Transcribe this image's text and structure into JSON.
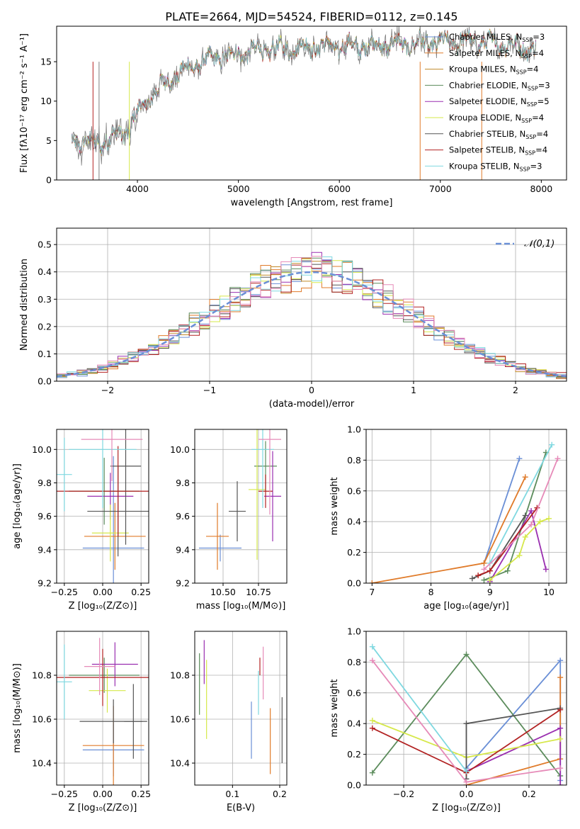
{
  "figure": {
    "title": "PLATE=2664, MJD=54524, FIBERID=0112, z=0.145"
  },
  "models": [
    {
      "key": "m1",
      "label": "Chabrier MILES, N",
      "sub": "SSP",
      "suffix": "=3",
      "color": "#6a8fd6"
    },
    {
      "key": "m2",
      "label": "Salpeter MILES, N",
      "sub": "SSP",
      "suffix": "=4",
      "color": "#e07b2a"
    },
    {
      "key": "m3",
      "label": "Kroupa MILES, N",
      "sub": "SSP",
      "suffix": "=4",
      "color": "#c08a2a"
    },
    {
      "key": "m4",
      "label": "Chabrier ELODIE, N",
      "sub": "SSP",
      "suffix": "=3",
      "color": "#5c8c5c"
    },
    {
      "key": "m5",
      "label": "Salpeter ELODIE, N",
      "sub": "SSP",
      "suffix": "=5",
      "color": "#9a2fb0"
    },
    {
      "key": "m6",
      "label": "Kroupa ELODIE, N",
      "sub": "SSP",
      "suffix": "=4",
      "color": "#d6e84a"
    },
    {
      "key": "m7",
      "label": "Chabrier STELIB, N",
      "sub": "SSP",
      "suffix": "=4",
      "color": "#555555"
    },
    {
      "key": "m8",
      "label": "Salpeter STELIB, N",
      "sub": "SSP",
      "suffix": "=4",
      "color": "#b22222"
    },
    {
      "key": "m9",
      "label": "Kroupa STELIB, N",
      "sub": "SSP",
      "suffix": "=3",
      "color": "#7fd8e0"
    },
    {
      "key": "m10",
      "label": "",
      "sub": "",
      "suffix": "",
      "color": "#e68ab8"
    }
  ],
  "chart_data": [
    {
      "id": "spectrum",
      "type": "line",
      "xlabel": "wavelength [Angstrom, rest frame]",
      "ylabel": "Flux [fλ10⁻¹⁷ erg cm⁻² s⁻¹ A⁻¹]",
      "xlim": [
        3200,
        8250
      ],
      "ylim": [
        0,
        19.5
      ],
      "xticks": [
        4000,
        5000,
        6000,
        7000,
        8000
      ],
      "yticks": [
        0,
        5,
        10,
        15
      ],
      "legend": "right",
      "continuum": {
        "x": [
          3350,
          3600,
          3900,
          4000,
          4200,
          4400,
          4600,
          4800,
          5000,
          5200,
          5400,
          5600,
          5800,
          6000,
          6200,
          6500,
          6800,
          7000,
          7300,
          7600,
          7900
        ],
        "y": [
          5.1,
          4.6,
          6.2,
          8.5,
          11.5,
          13.4,
          14.8,
          15.6,
          16.0,
          16.5,
          16.6,
          16.8,
          17.0,
          16.9,
          17.0,
          17.2,
          17.3,
          17.4,
          17.6,
          17.3,
          16.6
        ]
      },
      "data_range": [
        3350,
        7950
      ]
    },
    {
      "id": "residuals",
      "type": "bar",
      "xlabel": "(data-model)/error",
      "ylabel": "Normed distribution",
      "xlim": [
        -2.5,
        2.5
      ],
      "ylim": [
        0,
        0.56
      ],
      "xticks": [
        -2,
        -1,
        0,
        1,
        2
      ],
      "yticks": [
        0.0,
        0.1,
        0.2,
        0.3,
        0.4,
        0.5
      ],
      "legend": "top-right",
      "reference_label": "𝒩(0,1)",
      "reference": {
        "mean": 0,
        "sigma": 1
      },
      "bin_width": 0.1
    },
    {
      "id": "age_vs_Z",
      "type": "scatter",
      "xlabel": "Z [log₁₀(Z/Z⊙)]",
      "ylabel": "age  [log₁₀(age/yr)]",
      "xlim": [
        -0.3,
        0.3
      ],
      "ylim": [
        9.2,
        10.12
      ],
      "xticks": [
        -0.25,
        0.0,
        0.25
      ],
      "yticks": [
        9.2,
        9.4,
        9.6,
        9.8,
        10.0
      ],
      "points": [
        {
          "model": "m1",
          "x": 0.07,
          "xerr": 0.2,
          "y": 9.41,
          "yerr": 0.55
        },
        {
          "model": "m2",
          "x": 0.08,
          "xerr": 0.2,
          "y": 9.48,
          "yerr": 0.2
        },
        {
          "model": "m4",
          "x": 0.01,
          "xerr": 0.23,
          "y": 9.75,
          "yerr": 0.2
        },
        {
          "model": "m5",
          "x": 0.05,
          "xerr": 0.15,
          "y": 9.72,
          "yerr": 0.14
        },
        {
          "model": "m6",
          "x": 0.05,
          "xerr": 0.12,
          "y": 9.5,
          "yerr": 0.17
        },
        {
          "model": "m7",
          "x": 0.1,
          "xerr": 0.2,
          "y": 9.63,
          "yerr": 0.27
        },
        {
          "model": "m7",
          "x": 0.15,
          "xerr": 0.1,
          "y": 9.9,
          "yerr": 0.47
        },
        {
          "model": "m8",
          "x": 0.1,
          "xerr": 0.42,
          "y": 9.75,
          "yerr": 0.27
        },
        {
          "model": "m9",
          "x": 0.0,
          "xerr": 0.22,
          "y": 10.0,
          "yerr": 0.35
        },
        {
          "model": "m9",
          "x": -0.25,
          "xerr": 0.05,
          "y": 9.85,
          "yerr": 0.22
        },
        {
          "model": "m10",
          "x": 0.06,
          "xerr": 0.2,
          "y": 10.06,
          "yerr": 0.25
        }
      ]
    },
    {
      "id": "age_vs_mass",
      "type": "scatter",
      "xlabel": "mass [log₁₀(M/M⊙)]",
      "ylabel": "",
      "xlim": [
        10.3,
        10.95
      ],
      "ylim": [
        9.2,
        10.12
      ],
      "xticks": [
        10.5,
        10.75
      ],
      "yticks": [
        9.2,
        9.4,
        9.6,
        9.8,
        10.0
      ],
      "points": [
        {
          "model": "m1",
          "x": 10.48,
          "xerr": 0.15,
          "y": 9.41,
          "yerr": 0.08
        },
        {
          "model": "m2",
          "x": 10.46,
          "xerr": 0.08,
          "y": 9.48,
          "yerr": 0.2
        },
        {
          "model": "m4",
          "x": 10.8,
          "xerr": 0.08,
          "y": 9.9,
          "yerr": 0.15
        },
        {
          "model": "m5",
          "x": 10.85,
          "xerr": 0.06,
          "y": 9.72,
          "yerr": 0.27
        },
        {
          "model": "m6",
          "x": 10.74,
          "xerr": 0.06,
          "y": 9.76,
          "yerr": 0.42
        },
        {
          "model": "m7",
          "x": 10.6,
          "xerr": 0.06,
          "y": 9.63,
          "yerr": 0.18
        },
        {
          "model": "m8",
          "x": 10.8,
          "xerr": 0.05,
          "y": 9.75,
          "yerr": 0.1
        },
        {
          "model": "m9",
          "x": 10.78,
          "xerr": 0.08,
          "y": 10.0,
          "yerr": 0.35
        },
        {
          "model": "m10",
          "x": 10.83,
          "xerr": 0.08,
          "y": 10.06,
          "yerr": 0.45
        }
      ]
    },
    {
      "id": "weight_vs_age",
      "type": "line",
      "xlabel": "age  [log₁₀(age/yr)]",
      "ylabel": "mass weight",
      "xlim": [
        6.9,
        10.3
      ],
      "ylim": [
        0,
        1.0
      ],
      "xticks": [
        7,
        8,
        9,
        10
      ],
      "yticks": [
        0.0,
        0.2,
        0.4,
        0.6,
        0.8,
        1.0
      ],
      "series": [
        {
          "model": "m1",
          "x": [
            8.9,
            9.5
          ],
          "y": [
            0.13,
            0.81
          ]
        },
        {
          "model": "m2",
          "x": [
            7.0,
            8.9,
            9.6
          ],
          "y": [
            0.0,
            0.13,
            0.69
          ]
        },
        {
          "model": "m4",
          "x": [
            8.9,
            9.3,
            9.95
          ],
          "y": [
            0.02,
            0.08,
            0.85
          ]
        },
        {
          "model": "m5",
          "x": [
            9.0,
            9.7,
            9.95
          ],
          "y": [
            0.01,
            0.47,
            0.09
          ]
        },
        {
          "model": "m6",
          "x": [
            9.0,
            9.5,
            9.6,
            9.85,
            10.0
          ],
          "y": [
            0.02,
            0.18,
            0.3,
            0.4,
            0.42
          ]
        },
        {
          "model": "m7",
          "x": [
            8.7,
            9.0,
            9.6
          ],
          "y": [
            0.03,
            0.08,
            0.44
          ]
        },
        {
          "model": "m8",
          "x": [
            8.8,
            9.0,
            9.8
          ],
          "y": [
            0.05,
            0.08,
            0.49
          ]
        },
        {
          "model": "m9",
          "x": [
            9.0,
            10.05
          ],
          "y": [
            0.13,
            0.9
          ]
        },
        {
          "model": "m10",
          "x": [
            8.9,
            9.7,
            10.15
          ],
          "y": [
            0.09,
            0.38,
            0.81
          ]
        }
      ]
    },
    {
      "id": "mass_vs_Z",
      "type": "scatter",
      "xlabel": "Z [log₁₀(Z/Z⊙)]",
      "ylabel": "mass [log₁₀(M/M⊙)]",
      "xlim": [
        -0.3,
        0.3
      ],
      "ylim": [
        10.3,
        11.0
      ],
      "xticks": [
        -0.25,
        0.0,
        0.25
      ],
      "yticks": [
        10.4,
        10.6,
        10.8
      ],
      "points": [
        {
          "model": "m1",
          "x": 0.07,
          "xerr": 0.2,
          "y": 10.46,
          "yerr": 0.12
        },
        {
          "model": "m2",
          "x": 0.07,
          "xerr": 0.2,
          "y": 10.48,
          "yerr": 0.18
        },
        {
          "model": "m4",
          "x": 0.01,
          "xerr": 0.23,
          "y": 10.8,
          "yerr": 0.08
        },
        {
          "model": "m5",
          "x": 0.08,
          "xerr": 0.15,
          "y": 10.85,
          "yerr": 0.1
        },
        {
          "model": "m6",
          "x": 0.03,
          "xerr": 0.12,
          "y": 10.73,
          "yerr": 0.1
        },
        {
          "model": "m7",
          "x": 0.07,
          "xerr": 0.22,
          "y": 10.59,
          "yerr": 0.1
        },
        {
          "model": "m7",
          "x": 0.2,
          "xerr": 0.06,
          "y": 10.59,
          "yerr": 0.17
        },
        {
          "model": "m8",
          "x": 0.0,
          "xerr": 0.3,
          "y": 10.79,
          "yerr": 0.13
        },
        {
          "model": "m9",
          "x": -0.25,
          "xerr": 0.05,
          "y": 10.77,
          "yerr": 0.17
        },
        {
          "model": "m10",
          "x": -0.02,
          "xerr": 0.1,
          "y": 10.84,
          "yerr": 0.13
        }
      ]
    },
    {
      "id": "mass_vs_EBV",
      "type": "scatter",
      "xlabel": "E(B-V)",
      "ylabel": "",
      "xlim": [
        0.02,
        0.215
      ],
      "ylim": [
        10.3,
        11.0
      ],
      "xticks": [
        0.1,
        0.2
      ],
      "yticks": [
        10.4,
        10.6,
        10.8
      ],
      "points": [
        {
          "model": "m4",
          "x": 0.03,
          "xerr": 0,
          "y": 10.76,
          "yerr": 0.14
        },
        {
          "model": "m5",
          "x": 0.04,
          "xerr": 0,
          "y": 10.86,
          "yerr": 0.1
        },
        {
          "model": "m6",
          "x": 0.045,
          "xerr": 0,
          "y": 10.69,
          "yerr": 0.18
        },
        {
          "model": "m1",
          "x": 0.14,
          "xerr": 0,
          "y": 10.55,
          "yerr": 0.13
        },
        {
          "model": "m10",
          "x": 0.165,
          "xerr": 0,
          "y": 10.81,
          "yerr": 0.12
        },
        {
          "model": "m9",
          "x": 0.155,
          "xerr": 0,
          "y": 10.72,
          "yerr": 0.1
        },
        {
          "model": "m8",
          "x": 0.158,
          "xerr": 0,
          "y": 10.84,
          "yerr": 0.04
        },
        {
          "model": "m2",
          "x": 0.18,
          "xerr": 0,
          "y": 10.5,
          "yerr": 0.15
        },
        {
          "model": "m7",
          "x": 0.205,
          "xerr": 0,
          "y": 10.55,
          "yerr": 0.15
        }
      ]
    },
    {
      "id": "weight_vs_Z",
      "type": "line",
      "xlabel": "Z [log₁₀(Z/Z⊙)]",
      "ylabel": "mass weight",
      "xlim": [
        -0.32,
        0.32
      ],
      "ylim": [
        0,
        1.0
      ],
      "xticks": [
        -0.2,
        0.0,
        0.2
      ],
      "yticks": [
        0.0,
        0.2,
        0.4,
        0.6,
        0.8,
        1.0
      ],
      "series": [
        {
          "model": "m1",
          "x": [
            0.0,
            0.3,
            0.3
          ],
          "y": [
            0.11,
            0.81,
            0.03
          ]
        },
        {
          "model": "m2",
          "x": [
            0.0,
            0.3,
            0.3
          ],
          "y": [
            0.0,
            0.17,
            0.7
          ]
        },
        {
          "model": "m4",
          "x": [
            -0.3,
            0.0,
            0.3
          ],
          "y": [
            0.08,
            0.85,
            0.06
          ]
        },
        {
          "model": "m5",
          "x": [
            0.0,
            0.3,
            0.3
          ],
          "y": [
            0.09,
            0.37,
            0.0
          ]
        },
        {
          "model": "m6",
          "x": [
            -0.3,
            0.0,
            0.3
          ],
          "y": [
            0.42,
            0.18,
            0.3
          ]
        },
        {
          "model": "m7",
          "x": [
            0.0,
            0.0,
            0.3
          ],
          "y": [
            0.04,
            0.4,
            0.5
          ]
        },
        {
          "model": "m8",
          "x": [
            -0.3,
            0.0,
            0.3
          ],
          "y": [
            0.37,
            0.08,
            0.49
          ]
        },
        {
          "model": "m9",
          "x": [
            -0.3,
            0.0
          ],
          "y": [
            0.9,
            0.09
          ]
        },
        {
          "model": "m10",
          "x": [
            -0.3,
            0.0,
            0.3
          ],
          "y": [
            0.81,
            0.02,
            0.11
          ]
        }
      ]
    }
  ]
}
